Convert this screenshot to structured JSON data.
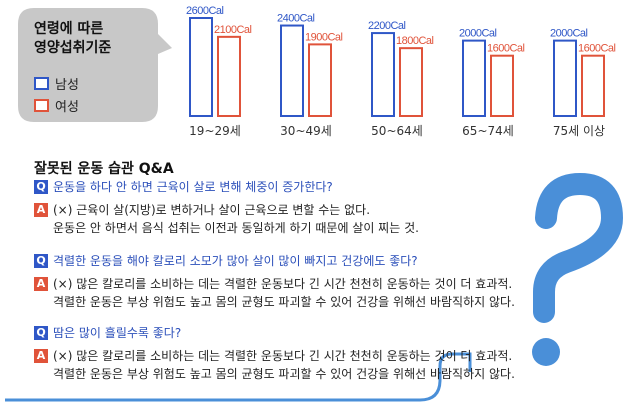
{
  "legend": {
    "title_line1": "연령에 따른",
    "title_line2": "영양섭취기준",
    "male_label": "남성",
    "female_label": "여성",
    "male_color": "#2f57c7",
    "female_color": "#e0533a"
  },
  "chart_data": {
    "type": "bar",
    "categories": [
      "19~29세",
      "30~49세",
      "50~64세",
      "65~74세",
      "75세 이상"
    ],
    "series": [
      {
        "name": "남성",
        "values": [
          2600,
          2400,
          2200,
          2000,
          2000
        ],
        "labels": [
          "2600Cal",
          "2400Cal",
          "2200Cal",
          "2000Cal",
          "2000Cal"
        ]
      },
      {
        "name": "여성",
        "values": [
          2100,
          1900,
          1800,
          1600,
          1600
        ],
        "labels": [
          "2100Cal",
          "1900Cal",
          "1800Cal",
          "1600Cal",
          "1600Cal"
        ]
      }
    ],
    "title": "",
    "xlabel": "",
    "ylabel": "",
    "ylim": [
      0,
      2600
    ],
    "grid": false
  },
  "qa": {
    "title": "잘못된 운동 습관 Q&A",
    "q_badge": "Q",
    "a_badge": "A",
    "items": [
      {
        "q": "운동을 하다 안 하면 근육이 살로 변해 체중이 증가한다?",
        "a1": "(×) 근육이 살(지방)로 변하거나 살이 근육으로 변할 수는 없다.",
        "a2": "운동은 안 하면서 음식 섭취는 이전과 동일하게 하기 때문에 살이 찌는 것."
      },
      {
        "q": "격렬한 운동을 해야 칼로리 소모가 많아 살이 많이 빠지고 건강에도 좋다?",
        "a1": "(×) 많은 칼로리를 소비하는 데는 격렬한 운동보다 긴 시간 천천히 운동하는 것이 더 효과적.",
        "a2": "격렬한 운동은 부상 위험도 높고 몸의 균형도 파괴할 수 있어 건강을 위해선 바람직하지 않다."
      },
      {
        "q": "땀은 많이 흘릴수록 좋다?",
        "a1": "(×) 많은 칼로리를 소비하는 데는 격렬한 운동보다 긴 시간 천천히 운동하는 것이 더 효과적.",
        "a2": "격렬한 운동은 부상 위험도 높고 몸의 균형도 파괴할 수 있어 건강을 위해선 바람직하지 않다."
      }
    ]
  }
}
